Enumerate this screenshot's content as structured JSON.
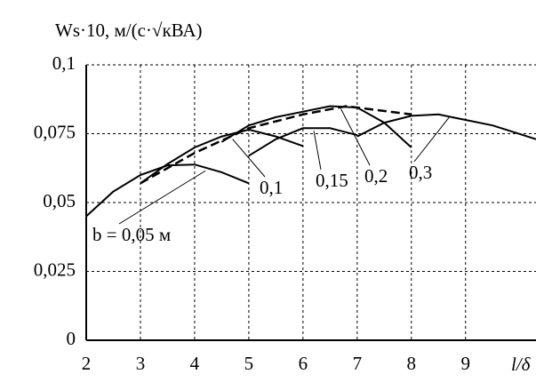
{
  "chart_data": {
    "type": "line",
    "title": "Ws·10, м/(с·√кВА)",
    "xlabel": "l/δ",
    "xlim": [
      2,
      10.3
    ],
    "ylim": [
      0,
      0.1
    ],
    "xticks": [
      2,
      3,
      4,
      5,
      6,
      7,
      8,
      9
    ],
    "yticks": [
      0,
      {
        "value": 0.025,
        "label": "0,025"
      },
      {
        "value": 0.05,
        "label": "0,05"
      },
      {
        "value": 0.075,
        "label": "0,075"
      },
      {
        "value": 0.1,
        "label": "0,1"
      }
    ],
    "grid": true,
    "series": [
      {
        "name": "b = 0,05 м",
        "color": "#000000",
        "x": [
          2,
          2.5,
          3,
          3.5,
          4,
          4.5,
          5
        ],
        "values": [
          0.045,
          0.054,
          0.06,
          0.0635,
          0.0638,
          0.061,
          0.057
        ]
      },
      {
        "name": "0,1",
        "color": "#000000",
        "x": [
          3,
          3.5,
          4,
          4.5,
          5,
          5.5,
          6
        ],
        "values": [
          0.057,
          0.064,
          0.07,
          0.074,
          0.0765,
          0.074,
          0.0705
        ]
      },
      {
        "name": "0,15",
        "color": "#000000",
        "x": [
          5,
          5.5,
          6,
          6.5,
          7
        ],
        "values": [
          0.067,
          0.073,
          0.077,
          0.077,
          0.0745
        ]
      },
      {
        "name": "0,2",
        "color": "#000000",
        "x": [
          4.5,
          5,
          5.5,
          6,
          6.5,
          7,
          7.5,
          8
        ],
        "values": [
          0.072,
          0.078,
          0.081,
          0.083,
          0.085,
          0.0845,
          0.079,
          0.07
        ]
      },
      {
        "name": "0,3",
        "color": "#000000",
        "x": [
          7,
          7.5,
          8,
          8.5,
          9,
          9.5,
          10.3
        ],
        "values": [
          0.074,
          0.079,
          0.0815,
          0.082,
          0.08,
          0.078,
          0.073
        ]
      },
      {
        "color": "#000000",
        "dashed": true,
        "x": [
          3,
          4,
          5,
          6,
          6.8,
          8
        ],
        "values": [
          0.057,
          0.068,
          0.077,
          0.082,
          0.085,
          0.082
        ]
      }
    ]
  }
}
